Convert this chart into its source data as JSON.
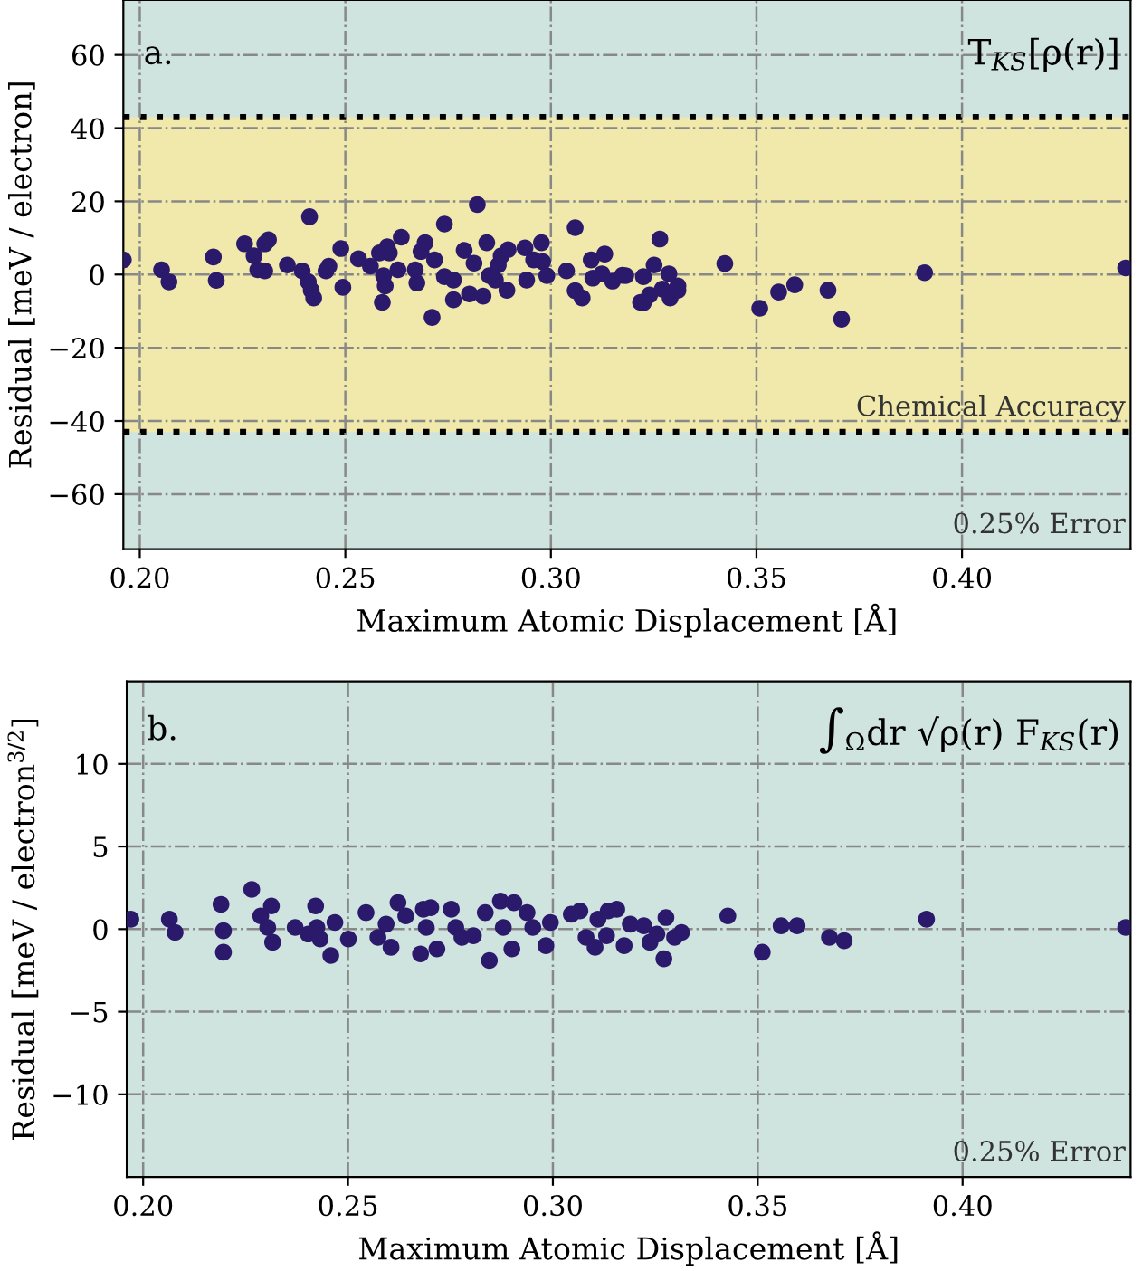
{
  "chart_data": [
    {
      "type": "scatter",
      "xlabel": "Maximum Atomic Displacement [Å]",
      "ylabel": "Residual [meV / electron]",
      "annotations": [
        "a.",
        "T$_{KS}$[ρ(r)]"
      ],
      "xlim": [
        0.196,
        0.441
      ],
      "ylim": [
        -75,
        75
      ],
      "xticks": [
        {
          "value": 0.2,
          "label": "0.20"
        },
        {
          "value": 0.25,
          "label": "0.25"
        },
        {
          "value": 0.3,
          "label": "0.30"
        },
        {
          "value": 0.35,
          "label": "0.35"
        },
        {
          "value": 0.4,
          "label": "0.40"
        }
      ],
      "yticks": [
        {
          "value": -60,
          "label": "−60"
        },
        {
          "value": -40,
          "label": "−40"
        },
        {
          "value": -20,
          "label": "−20"
        },
        0,
        20,
        40,
        60
      ],
      "grid": true,
      "marker": "circle",
      "bands": [
        {
          "axis": "y",
          "from": -75,
          "to": 75,
          "label": "0.25% Error",
          "color": "#cfe3df"
        },
        {
          "axis": "y",
          "from": -43,
          "to": 43,
          "label": "Chemical Accuracy",
          "color": "#f0e9ab"
        }
      ],
      "ref_lines": [
        {
          "axis": "y",
          "value": -43,
          "color": "#000000",
          "line_style": "dotted"
        },
        {
          "axis": "y",
          "value": 43,
          "color": "#000000",
          "line_style": "dotted"
        }
      ],
      "series": [
        {
          "color": "#2b1a6b",
          "x": [
            0.196,
            0.2053,
            0.2071,
            0.2179,
            0.2186,
            0.2255,
            0.2278,
            0.2287,
            0.2304,
            0.2304,
            0.2313,
            0.2359,
            0.2395,
            0.2413,
            0.241,
            0.2417,
            0.2423,
            0.2453,
            0.246,
            0.2489,
            0.2494,
            0.2532,
            0.2561,
            0.2583,
            0.2593,
            0.259,
            0.2602,
            0.2607,
            0.2597,
            0.2628,
            0.2636,
            0.267,
            0.2674,
            0.2684,
            0.2694,
            0.2717,
            0.2711,
            0.2741,
            0.2741,
            0.2763,
            0.2763,
            0.2789,
            0.2802,
            0.2813,
            0.2821,
            0.2835,
            0.2844,
            0.285,
            0.2865,
            0.2872,
            0.2879,
            0.2896,
            0.2893,
            0.2937,
            0.2941,
            0.2958,
            0.2977,
            0.298,
            0.299,
            0.3038,
            0.3059,
            0.3059,
            0.3076,
            0.3098,
            0.3102,
            0.3131,
            0.3124,
            0.315,
            0.3174,
            0.3218,
            0.3265,
            0.3251,
            0.3287,
            0.3182,
            0.3225,
            0.324,
            0.3225,
            0.3271,
            0.329,
            0.3309,
            0.3309,
            0.3423,
            0.3508,
            0.3554,
            0.3593,
            0.3674,
            0.3707,
            0.3909,
            0.4398
          ],
          "values": [
            4,
            1.3,
            -2,
            4.8,
            -1.6,
            8.4,
            5.1,
            1.3,
            1,
            8.4,
            9.5,
            2.6,
            1,
            15.8,
            -2,
            -4.3,
            -6.4,
            1,
            2.3,
            7.1,
            -3.5,
            4.3,
            2.3,
            5.9,
            -0.3,
            -7.6,
            7.6,
            5.9,
            -3.1,
            1.3,
            10.2,
            1.3,
            -2.3,
            6.3,
            8.7,
            4,
            -11.7,
            13.8,
            -0.6,
            -1.5,
            -6.9,
            6.6,
            -5.3,
            3.1,
            19.1,
            -5.9,
            8.7,
            -0.3,
            -1.5,
            2.6,
            5.1,
            6.8,
            -4.3,
            7.3,
            -1.5,
            4,
            8.7,
            3.5,
            -0.3,
            1,
            12.8,
            -4.4,
            -6.4,
            4,
            -1,
            5.6,
            0.2,
            -1.8,
            -0.2,
            -7.6,
            9.7,
            2.6,
            0.2,
            -0.3,
            -0.6,
            -5.6,
            -7.7,
            -4,
            -6.4,
            -4.3,
            -3.1,
            3,
            -9.2,
            -4.8,
            -2.8,
            -4.3,
            -12.2,
            0.5,
            1.8
          ]
        }
      ]
    },
    {
      "type": "scatter",
      "xlabel": "Maximum Atomic Displacement [Å]",
      "ylabel": "Residual [meV / electron$^{3/2}$]",
      "annotations": [
        "b.",
        "∫$_{Ω}$dr √ρ(r) F$_{KS}$(r)"
      ],
      "xlim": [
        0.196,
        0.441
      ],
      "ylim": [
        -15,
        15
      ],
      "xticks": [
        {
          "value": 0.2,
          "label": "0.20"
        },
        {
          "value": 0.25,
          "label": "0.25"
        },
        {
          "value": 0.3,
          "label": "0.30"
        },
        {
          "value": 0.35,
          "label": "0.35"
        },
        {
          "value": 0.4,
          "label": "0.40"
        }
      ],
      "yticks": [
        {
          "value": -10,
          "label": "−10"
        },
        {
          "value": -5,
          "label": "−5"
        },
        0,
        5,
        10
      ],
      "grid": true,
      "marker": "circle",
      "bands": [
        {
          "axis": "y",
          "from": -15,
          "to": 15,
          "label": "0.25% Error",
          "color": "#cfe3df"
        }
      ],
      "series": [
        {
          "color": "#2b1a6b",
          "x": [
            0.197,
            0.2064,
            0.2078,
            0.219,
            0.2196,
            0.2196,
            0.2265,
            0.2313,
            0.2287,
            0.2304,
            0.2316,
            0.2371,
            0.2403,
            0.2421,
            0.2424,
            0.2432,
            0.2458,
            0.2468,
            0.2501,
            0.2544,
            0.2573,
            0.2593,
            0.2605,
            0.2622,
            0.2641,
            0.2677,
            0.2684,
            0.2691,
            0.2702,
            0.2717,
            0.2752,
            0.2763,
            0.2778,
            0.2806,
            0.2835,
            0.2845,
            0.2872,
            0.2879,
            0.2905,
            0.29,
            0.2937,
            0.2951,
            0.2983,
            0.2994,
            0.3045,
            0.3066,
            0.3081,
            0.3103,
            0.311,
            0.3135,
            0.3156,
            0.3174,
            0.3189,
            0.3131,
            0.3222,
            0.3237,
            0.3254,
            0.3276,
            0.3271,
            0.3297,
            0.3314,
            0.3427,
            0.3511,
            0.3557,
            0.3596,
            0.3675,
            0.3711,
            0.3912,
            0.4398
          ],
          "values": [
            0.6,
            0.6,
            -0.2,
            1.5,
            -0.1,
            -1.4,
            2.4,
            1.4,
            0.8,
            0.1,
            -0.8,
            0.1,
            -0.3,
            1.4,
            0.1,
            -0.6,
            -1.6,
            0.4,
            -0.6,
            1,
            -0.5,
            0.3,
            -1.1,
            1.6,
            0.8,
            -1.5,
            1.2,
            0.1,
            1.3,
            -1.2,
            1.2,
            0.1,
            -0.5,
            -0.4,
            1,
            -1.9,
            1.7,
            0.1,
            1.6,
            -1.2,
            1,
            0.1,
            -1,
            0.4,
            0.9,
            1.1,
            -0.5,
            -1.1,
            0.6,
            1.1,
            1.2,
            -1,
            0.3,
            -0.4,
            0.2,
            -0.8,
            -0.3,
            0.7,
            -1.8,
            -0.5,
            -0.2,
            0.8,
            -1.4,
            0.2,
            0.2,
            -0.5,
            -0.7,
            0.6,
            0.1
          ]
        }
      ]
    }
  ]
}
